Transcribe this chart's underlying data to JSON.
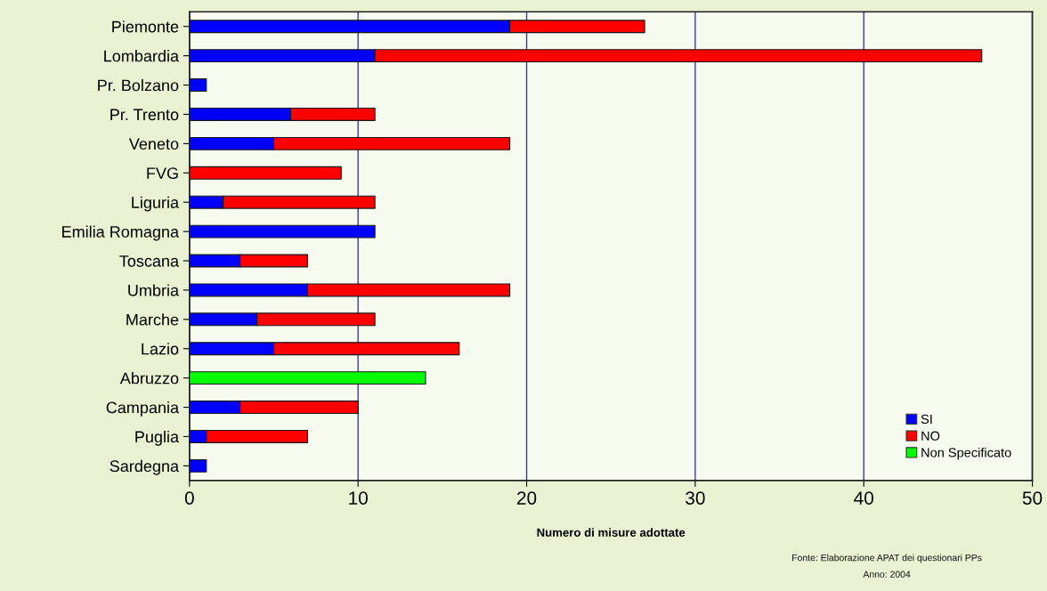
{
  "chart_data": {
    "type": "bar",
    "orientation": "horizontal",
    "stacked": true,
    "categories": [
      "Piemonte",
      "Lombardia",
      "Pr. Bolzano",
      "Pr. Trento",
      "Veneto",
      "FVG",
      "Liguria",
      "Emilia Romagna",
      "Toscana",
      "Umbria",
      "Marche",
      "Lazio",
      "Abruzzo",
      "Campania",
      "Puglia",
      "Sardegna"
    ],
    "series": [
      {
        "name": "SI",
        "color": "#0000ff",
        "values": [
          19,
          11,
          1,
          6,
          5,
          0,
          2,
          11,
          3,
          7,
          4,
          5,
          0,
          3,
          1,
          1
        ]
      },
      {
        "name": "NO",
        "color": "#ff0000",
        "values": [
          8,
          36,
          0,
          5,
          14,
          9,
          9,
          0,
          4,
          12,
          7,
          11,
          0,
          7,
          6,
          0
        ]
      },
      {
        "name": "Non Specificato",
        "color": "#00ff00",
        "values": [
          0,
          0,
          0,
          0,
          0,
          0,
          0,
          0,
          0,
          0,
          0,
          0,
          14,
          0,
          0,
          0
        ]
      }
    ],
    "xlabel": "Numero di misure adottate",
    "xlim": [
      0,
      50
    ],
    "xticks": [
      0,
      10,
      20,
      30,
      40,
      50
    ],
    "grid": "x",
    "legend": "bottom right",
    "annotations": [
      "Fonte: Elaborazione APAT dei questionari PPs",
      "Anno: 2004"
    ]
  }
}
